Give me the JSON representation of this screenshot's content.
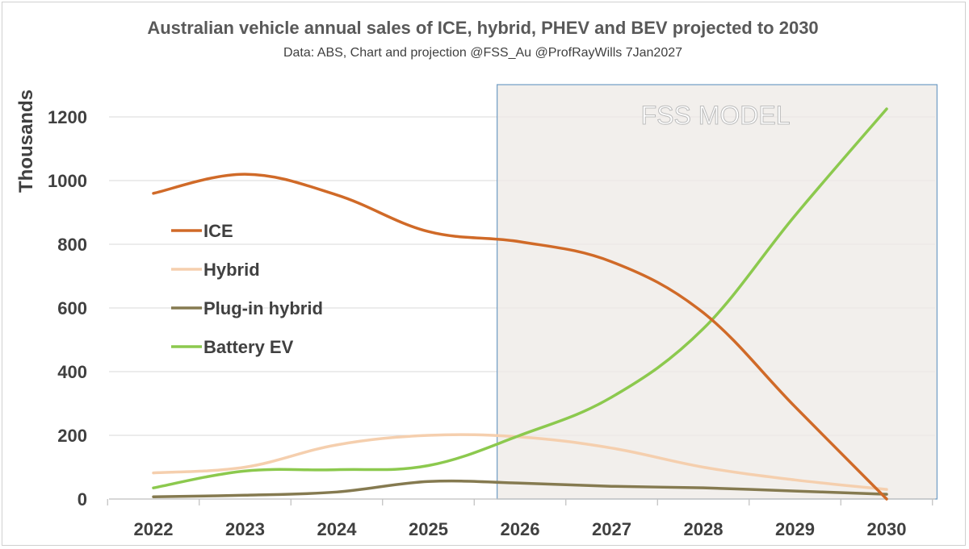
{
  "chart_data": {
    "type": "line",
    "title": "Australian vehicle annual sales of ICE, hybrid, PHEV and BEV projected to 2030",
    "subtitle": "Data: ABS, Chart and projection @FSS_Au @ProfRayWills 7Jan2027",
    "ylabel": "Thousands",
    "xlabel": "",
    "x": [
      "2022",
      "2023",
      "2024",
      "2025",
      "2026",
      "2027",
      "2028",
      "2029",
      "2030"
    ],
    "yticks": [
      "0",
      "200",
      "400",
      "600",
      "800",
      "1000",
      "1200"
    ],
    "ylim": [
      0,
      1300
    ],
    "grid": true,
    "legend_position": "left",
    "series": [
      {
        "name": "ICE",
        "color": "#d06a28",
        "values": [
          960,
          1020,
          955,
          840,
          808,
          745,
          585,
          290,
          0
        ]
      },
      {
        "name": "Hybrid",
        "color": "#f5cfae",
        "values": [
          82,
          100,
          170,
          200,
          195,
          160,
          100,
          60,
          30
        ]
      },
      {
        "name": "Plug-in hybrid",
        "color": "#857a50",
        "values": [
          7,
          12,
          22,
          55,
          50,
          40,
          35,
          25,
          15
        ]
      },
      {
        "name": "Battery EV",
        "color": "#8cc94e",
        "values": [
          35,
          88,
          92,
          105,
          200,
          320,
          535,
          890,
          1225
        ]
      }
    ],
    "annotation": {
      "label": "FSS MODEL",
      "x_start": 2025.75,
      "x_end": 2030.55
    }
  }
}
